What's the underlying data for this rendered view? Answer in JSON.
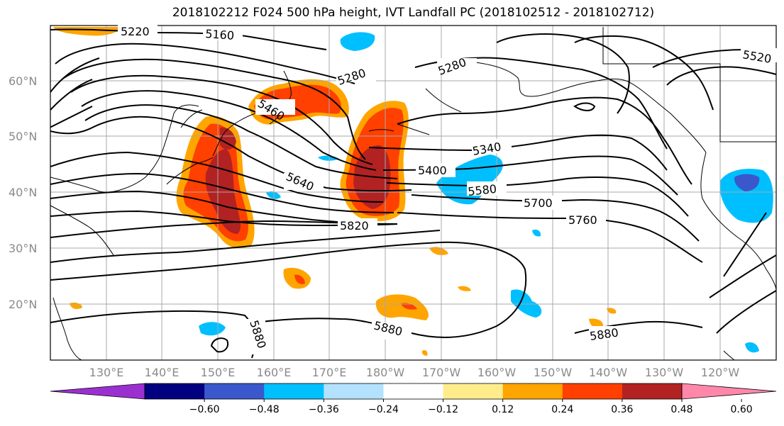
{
  "title": "2018102212 F024 500 hPa height, IVT Landfall PC (2018102512 - 2018102712)",
  "lat_labels": [
    "60°N",
    "50°N",
    "40°N",
    "30°N",
    "20°N"
  ],
  "lon_labels": [
    "130°E",
    "140°E",
    "150°E",
    "160°E",
    "170°E",
    "180°W",
    "170°W",
    "160°W",
    "150°W",
    "140°W",
    "130°W",
    "120°W"
  ],
  "height_contour_labels": [
    "5160",
    "5220",
    "5280",
    "5280",
    "5460",
    "5520",
    "5340",
    "5400",
    "5580",
    "5640",
    "5700",
    "5760",
    "5820",
    "5880",
    "5880",
    "5880"
  ],
  "colorbar": {
    "tick_labels": [
      "-0.60",
      "-0.48",
      "-0.36",
      "-0.24",
      "-0.12",
      "0.12",
      "0.24",
      "0.36",
      "0.48",
      "0.60"
    ],
    "colors": [
      "#9b30d0",
      "#000080",
      "#3a58cc",
      "#00bfff",
      "#b3e2ff",
      "#ffffff",
      "#ffec8b",
      "#ffa500",
      "#ff4000",
      "#b22222",
      "#ff88aa"
    ]
  }
}
